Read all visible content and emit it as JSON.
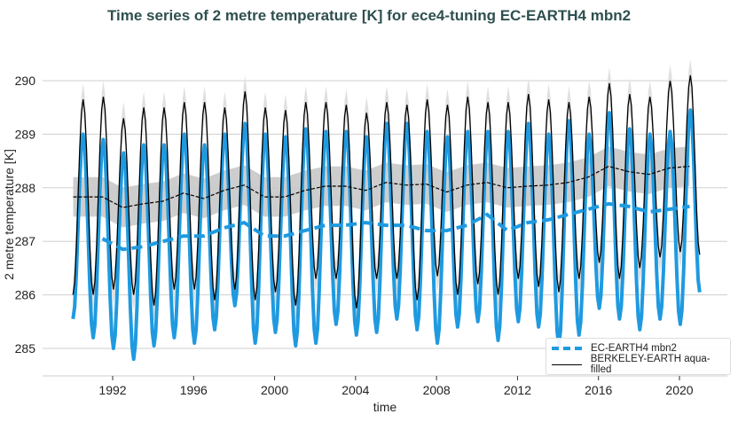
{
  "chart_data": {
    "type": "line",
    "title": "Time series of 2 metre temperature [K] for ece4-tuning EC-EARTH4 mbn2",
    "xlabel": "time",
    "ylabel": "2 metre temperature [K]",
    "xlim": [
      1989.7,
      2021.9
    ],
    "ylim": [
      284.5,
      290.5
    ],
    "x_ticks": [
      "1992",
      "1996",
      "2000",
      "2004",
      "2008",
      "2012",
      "2016",
      "2020"
    ],
    "y_ticks": [
      "285",
      "286",
      "287",
      "288",
      "289",
      "290"
    ],
    "grid": "horizontal",
    "legend_placement": "lower-right",
    "years": [
      1990,
      1991,
      1992,
      1993,
      1994,
      1995,
      1996,
      1997,
      1998,
      1999,
      2000,
      2001,
      2002,
      2003,
      2004,
      2005,
      2006,
      2007,
      2008,
      2009,
      2010,
      2011,
      2012,
      2013,
      2014,
      2015,
      2016,
      2017,
      2018,
      2019,
      2020
    ],
    "series": [
      {
        "name": "EC-EARTH4 mbn2",
        "color": "#1f9ae0",
        "style": "thick solid monthly; dashed annual running mean",
        "january_min": [
          285.55,
          285.2,
          285.0,
          284.8,
          285.05,
          285.2,
          285.1,
          285.35,
          285.8,
          285.1,
          285.3,
          285.05,
          285.1,
          285.45,
          285.25,
          285.3,
          285.55,
          285.35,
          285.1,
          285.4,
          285.5,
          285.15,
          285.5,
          285.4,
          285.05,
          285.25,
          285.75,
          285.55,
          285.35,
          285.55,
          285.45
        ],
        "july_max": [
          289.0,
          288.9,
          288.65,
          288.8,
          288.8,
          289.0,
          288.8,
          289.0,
          289.2,
          289.0,
          288.95,
          289.1,
          289.05,
          289.05,
          288.95,
          289.2,
          289.2,
          289.05,
          288.95,
          289.05,
          289.05,
          289.05,
          289.2,
          289.0,
          289.25,
          289.0,
          289.4,
          289.1,
          289.0,
          289.05,
          289.45
        ],
        "final_value": 286.05,
        "running_mean": [
          null,
          287.05,
          286.85,
          286.9,
          287.0,
          287.1,
          287.1,
          287.25,
          287.35,
          287.1,
          287.1,
          287.2,
          287.3,
          287.3,
          287.35,
          287.3,
          287.3,
          287.2,
          287.2,
          287.3,
          287.5,
          287.2,
          287.35,
          287.4,
          287.5,
          287.6,
          287.7,
          287.65,
          287.55,
          287.6,
          287.65
        ]
      },
      {
        "name": "BERKELEY-EARTH aqua-filled",
        "color": "#000000",
        "style": "thin solid monthly with grey uncertainty band; dashed annual running mean with grey band",
        "january_min": [
          286.0,
          286.0,
          286.1,
          286.0,
          285.8,
          286.1,
          286.1,
          285.9,
          286.1,
          285.9,
          286.05,
          285.8,
          286.3,
          286.3,
          285.75,
          286.3,
          286.3,
          285.9,
          286.35,
          286.0,
          286.2,
          286.0,
          286.3,
          286.15,
          286.05,
          286.3,
          286.6,
          286.3,
          286.5,
          286.7,
          286.8
        ],
        "july_max": [
          289.65,
          289.7,
          289.3,
          289.5,
          289.5,
          289.6,
          289.6,
          289.5,
          289.8,
          289.5,
          289.45,
          289.6,
          289.6,
          289.55,
          289.4,
          289.6,
          289.55,
          289.65,
          289.55,
          289.7,
          289.6,
          289.6,
          289.75,
          289.65,
          289.6,
          289.7,
          289.95,
          289.75,
          289.7,
          290.0,
          290.1
        ],
        "final_value": 286.75,
        "running_mean": [
          287.83,
          287.83,
          287.63,
          287.7,
          287.75,
          287.9,
          287.8,
          287.95,
          288.05,
          287.83,
          287.83,
          287.95,
          288.03,
          288.03,
          287.95,
          288.1,
          288.05,
          288.07,
          287.92,
          288.05,
          288.1,
          288.0,
          288.03,
          288.05,
          288.1,
          288.2,
          288.4,
          288.3,
          288.25,
          288.37,
          288.4
        ],
        "running_mean_uncertainty": 0.37,
        "monthly_uncertainty": 0.3
      }
    ]
  }
}
